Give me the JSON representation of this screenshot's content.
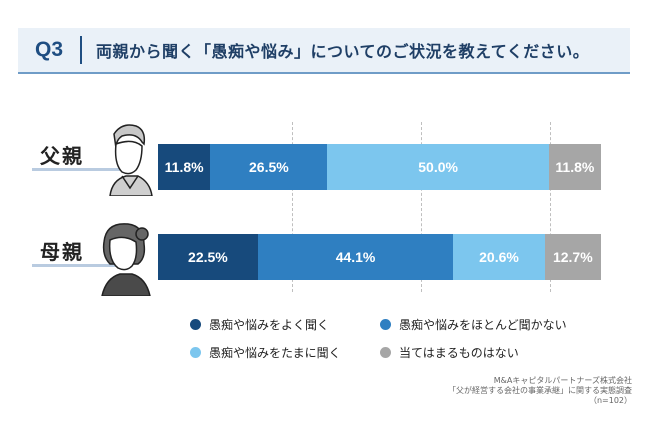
{
  "header": {
    "q_label": "Q3",
    "question": "両親から聞く「愚痴や悩み」についてのご状況を教えてください。"
  },
  "chart_data": {
    "type": "bar",
    "orientation": "horizontal",
    "stacked": true,
    "categories": [
      "父親",
      "母親"
    ],
    "series": [
      {
        "name": "愚痴や悩みをよく聞く",
        "values": [
          11.8,
          22.5
        ],
        "color": "#174a7c"
      },
      {
        "name": "愚痴や悩みをほとんど聞かない",
        "values": [
          26.5,
          44.1
        ],
        "color": "#2f7fc1"
      },
      {
        "name": "愚痴や悩みをたまに聞く",
        "values": [
          50.0,
          20.6
        ],
        "color": "#7cc6ee"
      },
      {
        "name": "当てはまるものはない",
        "values": [
          11.8,
          12.7
        ],
        "color": "#a6a6a6"
      }
    ],
    "value_labels": [
      [
        "11.8%",
        "26.5%",
        "50.0%",
        "11.8%"
      ],
      [
        "22.5%",
        "44.1%",
        "20.6%",
        "12.7%"
      ]
    ],
    "xlim": [
      0,
      100
    ],
    "grid": true,
    "legend_position": "bottom"
  },
  "source": {
    "line1": "M&Aキャピタルパートナーズ株式会社",
    "line2": "「父が経営する会社の事業承継」に関する実態調査",
    "line3": "（n=102）"
  }
}
